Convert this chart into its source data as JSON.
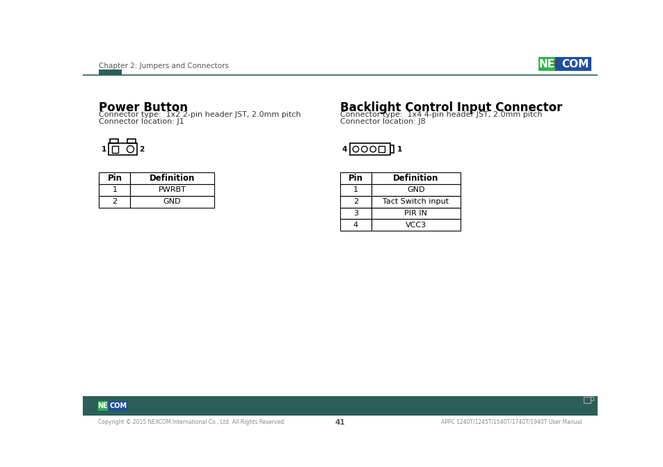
{
  "bg_color": "#ffffff",
  "header_text": "Chapter 2: Jumpers and Connectors",
  "header_bar_color": "#2d5f5a",
  "header_line_color": "#2d5f5a",
  "footer_bar_color": "#2d5f5a",
  "footer_text_left": "Copyright © 2015 NEXCOM International Co., Ltd. All Rights Reserved.",
  "footer_text_center": "41",
  "footer_text_right": "APPC 1240T/1245T/1540T/1740T/1940T User Manual",
  "left_section_title": "Power Button",
  "left_conn_type": "Connector type:  1x2 2-pin header JST, 2.0mm pitch",
  "left_conn_loc": "Connector location: J1",
  "right_section_title": "Backlight Control Input Connector",
  "right_conn_type": "Connector type:  1x4 4-pin header JST, 2.0mm pitch",
  "right_conn_loc": "Connector location: J8",
  "left_table_headers": [
    "Pin",
    "Definition"
  ],
  "left_table_data": [
    [
      "1",
      "PWRBT"
    ],
    [
      "2",
      "GND"
    ]
  ],
  "right_table_headers": [
    "Pin",
    "Definition"
  ],
  "right_table_data": [
    [
      "1",
      "GND"
    ],
    [
      "2",
      "Tact Switch input"
    ],
    [
      "3",
      "PIR IN"
    ],
    [
      "4",
      "VCC3"
    ]
  ],
  "nexcom_green": "#2db54b",
  "nexcom_blue": "#1e4fa0",
  "nexcom_red": "#cc1111",
  "accent_dark": "#2d5f5a",
  "text_dark": "#333333",
  "text_light": "#888888"
}
